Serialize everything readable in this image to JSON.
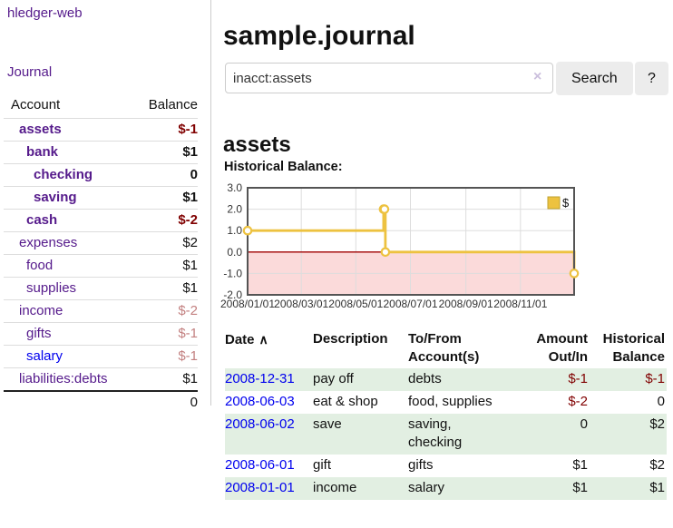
{
  "app": {
    "brand": "hledger-web"
  },
  "sidebar": {
    "journal_label": "Journal",
    "account_header": "Account",
    "balance_header": "Balance",
    "accounts": [
      {
        "name": "assets",
        "level": 1,
        "bold": true,
        "color": "purple",
        "balance": "$-1",
        "bclass": "neg-strong"
      },
      {
        "name": "bank",
        "level": 2,
        "bold": true,
        "color": "purple",
        "balance": "$1",
        "bclass": "pos"
      },
      {
        "name": "checking",
        "level": 3,
        "bold": true,
        "color": "purple",
        "balance": "0",
        "bclass": "pos"
      },
      {
        "name": "saving",
        "level": 3,
        "bold": true,
        "color": "purple",
        "balance": "$1",
        "bclass": "pos"
      },
      {
        "name": "cash",
        "level": 2,
        "bold": true,
        "color": "purple",
        "balance": "$-2",
        "bclass": "neg-strong"
      },
      {
        "name": "expenses",
        "level": 1,
        "bold": false,
        "color": "purple",
        "balance": "$2",
        "bclass": "pos"
      },
      {
        "name": "food",
        "level": 2,
        "bold": false,
        "color": "purple",
        "balance": "$1",
        "bclass": "pos"
      },
      {
        "name": "supplies",
        "level": 2,
        "bold": false,
        "color": "purple",
        "balance": "$1",
        "bclass": "pos"
      },
      {
        "name": "income",
        "level": 1,
        "bold": false,
        "color": "purple",
        "balance": "$-2",
        "bclass": "neg-dim"
      },
      {
        "name": "gifts",
        "level": 2,
        "bold": false,
        "color": "purple",
        "balance": "$-1",
        "bclass": "neg-dim"
      },
      {
        "name": "salary",
        "level": 2,
        "bold": false,
        "color": "blue",
        "balance": "$-1",
        "bclass": "neg-dim"
      },
      {
        "name": "liabilities:debts",
        "level": 1,
        "bold": false,
        "color": "purple",
        "balance": "$1",
        "bclass": "pos"
      }
    ],
    "total": "0"
  },
  "header": {
    "title": "sample.journal"
  },
  "search": {
    "value": "inacct:assets",
    "clear_icon": "×",
    "search_label": "Search",
    "help_label": "?"
  },
  "account_view": {
    "title": "assets",
    "section_label": "Historical Balance:"
  },
  "chart_data": {
    "type": "line",
    "step": true,
    "title": "Historical Balance",
    "x_start": "2008-01-01",
    "series": [
      {
        "name": "$",
        "color": "#edc240",
        "points": [
          {
            "date": "2008-01-01",
            "value": 1
          },
          {
            "date": "2008-06-01",
            "value": 2
          },
          {
            "date": "2008-06-02",
            "value": 2
          },
          {
            "date": "2008-06-03",
            "value": 0
          },
          {
            "date": "2008-12-31",
            "value": -1
          }
        ]
      }
    ],
    "ylim": [
      -2,
      3
    ],
    "yticks": [
      3.0,
      2.0,
      1.0,
      0.0,
      -1.0,
      -2.0
    ],
    "xticks": [
      {
        "label": "2008/01/01",
        "day": 0
      },
      {
        "label": "2008/03/01",
        "day": 60
      },
      {
        "label": "2008/05/01",
        "day": 121
      },
      {
        "label": "2008/07/01",
        "day": 182
      },
      {
        "label": "2008/09/01",
        "day": 244
      },
      {
        "label": "2008/11/01",
        "day": 305
      }
    ],
    "xlim_days": [
      0,
      365
    ],
    "grid": true,
    "negative_fill": "#fbdada",
    "zero_line_color": "#a00000",
    "legend": {
      "label": "$",
      "position": "top-right"
    }
  },
  "register": {
    "sort_icon": "∧",
    "columns": [
      {
        "label": "Date"
      },
      {
        "label": "Description"
      },
      {
        "label": "To/From Account(s)"
      },
      {
        "label": "Amount Out/In"
      },
      {
        "label": "Historical Balance"
      }
    ],
    "rows": [
      {
        "date": "2008-12-31",
        "description": "pay off",
        "accounts": "debts",
        "amount": "$-1",
        "amount_neg": true,
        "balance": "$-1",
        "balance_neg": true,
        "shade": true
      },
      {
        "date": "2008-06-03",
        "description": "eat & shop",
        "accounts": "food, supplies",
        "amount": "$-2",
        "amount_neg": true,
        "balance": "0",
        "balance_neg": false,
        "shade": false
      },
      {
        "date": "2008-06-02",
        "description": "save",
        "accounts": "saving, checking",
        "amount": "0",
        "amount_neg": false,
        "balance": "$2",
        "balance_neg": false,
        "shade": true
      },
      {
        "date": "2008-06-01",
        "description": "gift",
        "accounts": "gifts",
        "amount": "$1",
        "amount_neg": false,
        "balance": "$2",
        "balance_neg": false,
        "shade": false
      },
      {
        "date": "2008-01-01",
        "description": "income",
        "accounts": "salary",
        "amount": "$1",
        "amount_neg": false,
        "balance": "$1",
        "balance_neg": false,
        "shade": true
      }
    ]
  },
  "colors": {
    "link_purple": "#551a8b",
    "link_blue": "#0000ee",
    "negative_strong": "#800000",
    "negative_dim": "#c38080",
    "row_shade_green": "#e2efe2",
    "chart_line": "#edc240",
    "chart_border": "#545454",
    "grid_line": "#dddddd",
    "button_bg": "#ececec"
  }
}
